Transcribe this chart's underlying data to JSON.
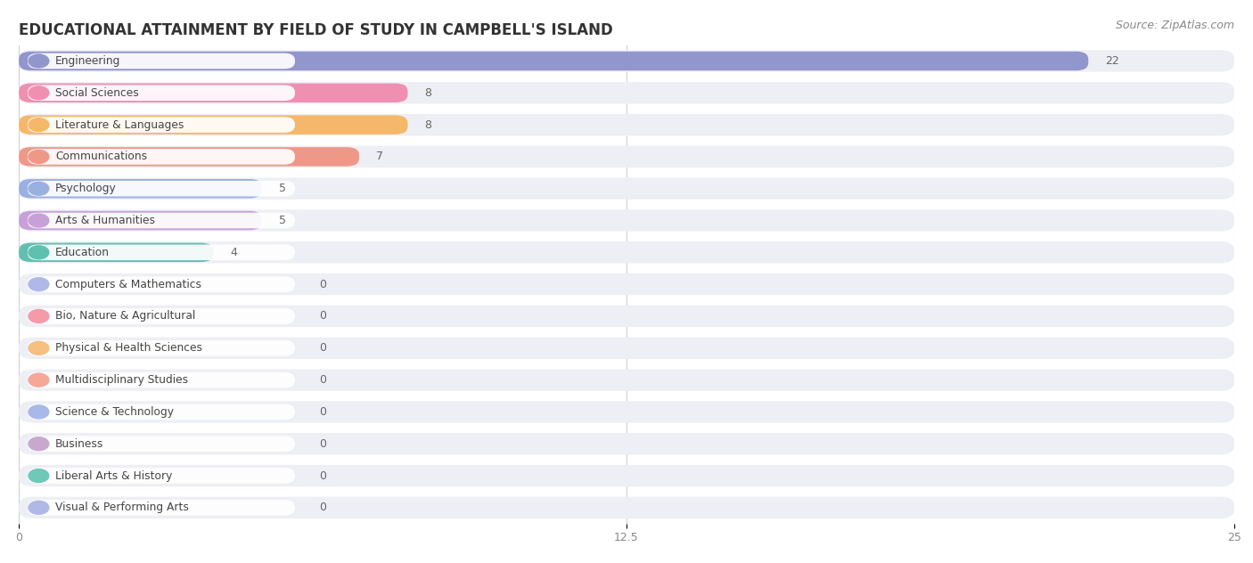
{
  "title": "EDUCATIONAL ATTAINMENT BY FIELD OF STUDY IN CAMPBELL'S ISLAND",
  "source": "Source: ZipAtlas.com",
  "categories": [
    "Engineering",
    "Social Sciences",
    "Literature & Languages",
    "Communications",
    "Psychology",
    "Arts & Humanities",
    "Education",
    "Computers & Mathematics",
    "Bio, Nature & Agricultural",
    "Physical & Health Sciences",
    "Multidisciplinary Studies",
    "Science & Technology",
    "Business",
    "Liberal Arts & History",
    "Visual & Performing Arts"
  ],
  "values": [
    22,
    8,
    8,
    7,
    5,
    5,
    4,
    0,
    0,
    0,
    0,
    0,
    0,
    0,
    0
  ],
  "bar_colors": [
    "#9196cc",
    "#f090b0",
    "#f5b86a",
    "#f09888",
    "#9ab0e0",
    "#c8a0d8",
    "#60c0b0",
    "#b0b8e8",
    "#f59aa8",
    "#f5c080",
    "#f5a898",
    "#a8b8e8",
    "#c8a8cc",
    "#70c8b8",
    "#b0b8e8"
  ],
  "xlim": [
    0,
    25
  ],
  "xticks": [
    0,
    12.5,
    25
  ],
  "bg_color": "#ffffff",
  "row_bg_color": "#eeeff5",
  "title_fontsize": 12,
  "source_fontsize": 9
}
